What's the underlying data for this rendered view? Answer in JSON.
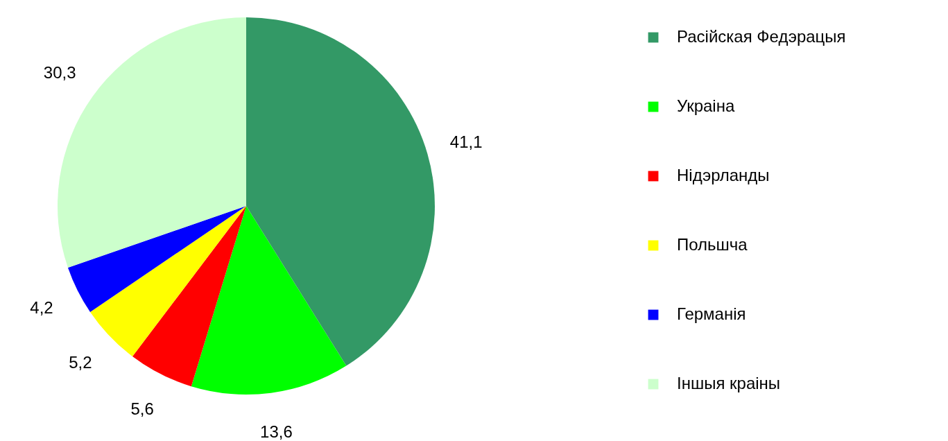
{
  "chart_data": {
    "type": "pie",
    "categories": [
      "Расійская Федэрацыя",
      "Украіна",
      "Нідэрланды",
      "Польшча",
      "Германія",
      "Іншыя краіны"
    ],
    "values": [
      41.1,
      13.6,
      5.6,
      5.2,
      4.2,
      30.3
    ],
    "value_labels": [
      "41,1",
      "13,6",
      "5,6",
      "5,2",
      "4,2",
      "30,3"
    ],
    "colors": [
      "#339966",
      "#00ff00",
      "#ff0000",
      "#ffff00",
      "#0000ff",
      "#ccffcc"
    ],
    "legend": "right"
  }
}
